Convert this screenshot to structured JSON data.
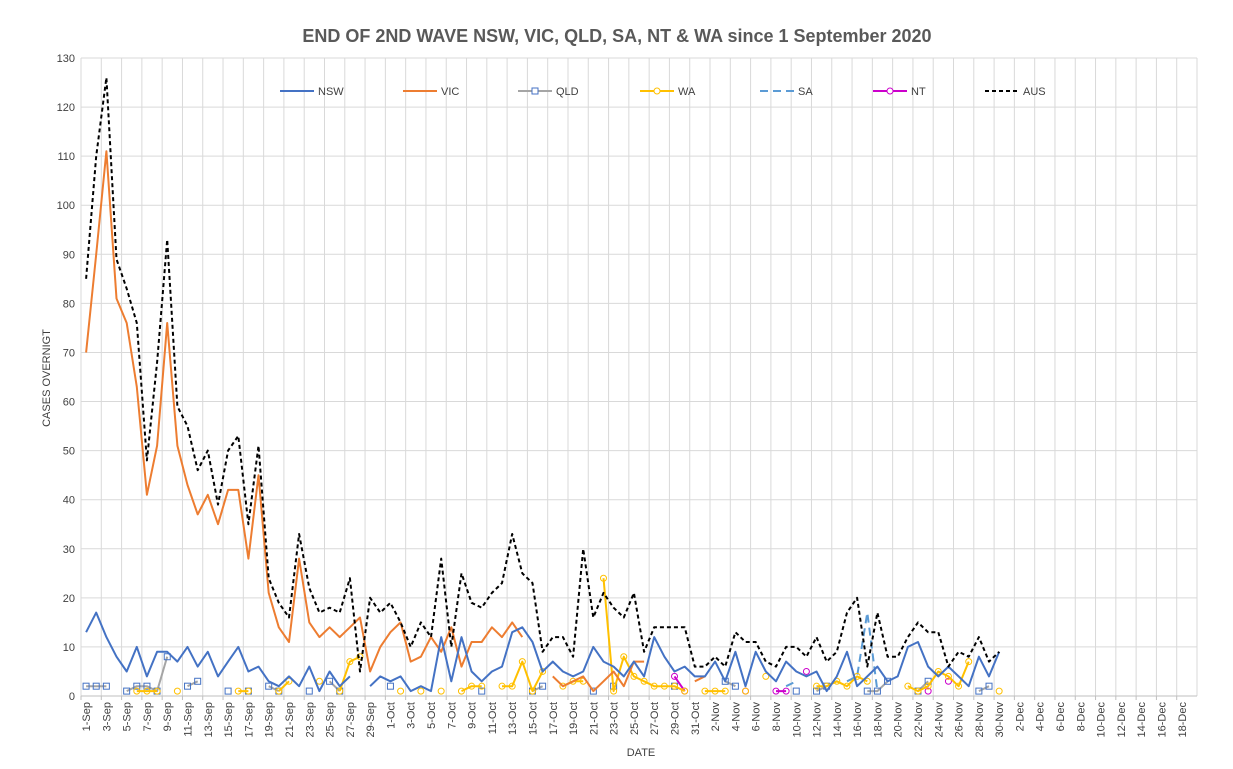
{
  "chart_data": {
    "type": "line",
    "title": "END OF 2ND WAVE NSW, VIC, QLD, SA, NT & WA since 1 September 2020",
    "xlabel": "DATE",
    "ylabel": "CASES OVERNIGT",
    "ylim": [
      0,
      130
    ],
    "y_ticks": [
      0,
      10,
      20,
      30,
      40,
      50,
      60,
      70,
      80,
      90,
      100,
      110,
      120,
      130
    ],
    "grid": true,
    "legend_position": "top",
    "x_tick_labels": [
      "1-Sep",
      "3-Sep",
      "5-Sep",
      "7-Sep",
      "9-Sep",
      "11-Sep",
      "13-Sep",
      "15-Sep",
      "17-Sep",
      "19-Sep",
      "21-Sep",
      "23-Sep",
      "25-Sep",
      "27-Sep",
      "29-Sep",
      "1-Oct",
      "3-Oct",
      "5-Oct",
      "7-Oct",
      "9-Oct",
      "11-Oct",
      "13-Oct",
      "15-Oct",
      "17-Oct",
      "19-Oct",
      "21-Oct",
      "23-Oct",
      "25-Oct",
      "27-Oct",
      "29-Oct",
      "31-Oct",
      "2-Nov",
      "4-Nov",
      "6-Nov",
      "8-Nov",
      "10-Nov",
      "12-Nov",
      "14-Nov",
      "16-Nov",
      "18-Nov",
      "20-Nov",
      "22-Nov",
      "24-Nov",
      "26-Nov",
      "28-Nov",
      "30-Nov",
      "2-Dec",
      "4-Dec",
      "6-Dec",
      "8-Dec",
      "10-Dec",
      "12-Dec",
      "14-Dec",
      "16-Dec",
      "18-Dec"
    ],
    "series": [
      {
        "name": "NSW",
        "color": "#4472C4",
        "style": "solid",
        "marker": "none",
        "values": [
          13,
          17,
          12,
          8,
          5,
          10,
          4,
          9,
          9,
          7,
          10,
          6,
          9,
          4,
          7,
          10,
          5,
          6,
          3,
          2,
          4,
          2,
          6,
          1,
          5,
          2,
          4,
          null,
          2,
          4,
          3,
          4,
          1,
          2,
          1,
          12,
          3,
          12,
          5,
          3,
          5,
          6,
          13,
          14,
          11,
          5,
          7,
          5,
          4,
          5,
          10,
          7,
          6,
          4,
          7,
          4,
          12,
          8,
          5,
          6,
          4,
          4,
          7,
          3,
          9,
          2,
          9,
          5,
          3,
          7,
          5,
          4,
          5,
          1,
          4,
          9,
          2,
          4,
          6,
          3,
          4,
          10,
          11,
          6,
          4,
          6,
          4,
          2,
          8,
          4,
          9
        ]
      },
      {
        "name": "VIC",
        "color": "#ED7D31",
        "style": "solid",
        "marker": "none",
        "values": [
          70,
          90,
          111,
          81,
          76,
          63,
          41,
          51,
          76,
          51,
          43,
          37,
          41,
          35,
          42,
          42,
          28,
          45,
          21,
          14,
          11,
          28,
          15,
          12,
          14,
          12,
          14,
          16,
          5,
          10,
          13,
          15,
          7,
          8,
          12,
          9,
          14,
          6,
          11,
          11,
          14,
          12,
          15,
          12,
          null,
          null,
          4,
          2,
          3,
          4,
          1,
          3,
          5,
          2,
          7,
          7,
          null,
          null,
          null,
          null,
          3,
          4,
          null,
          null,
          null,
          null,
          null,
          null,
          null,
          null,
          null,
          null,
          null,
          null,
          null,
          null,
          null,
          null,
          null,
          null,
          null,
          null,
          null,
          null,
          null,
          null,
          null,
          null,
          null,
          null,
          null
        ]
      },
      {
        "name": "QLD",
        "color": "#A5A5A5",
        "style": "solid",
        "marker": "square",
        "marker_color": "#4472C4",
        "values": [
          2,
          2,
          2,
          null,
          1,
          2,
          2,
          1,
          8,
          null,
          2,
          3,
          null,
          null,
          1,
          null,
          1,
          null,
          2,
          1,
          null,
          null,
          1,
          null,
          3,
          1,
          null,
          null,
          null,
          null,
          2,
          null,
          null,
          null,
          null,
          null,
          null,
          null,
          null,
          1,
          null,
          null,
          null,
          null,
          1,
          2,
          null,
          null,
          null,
          null,
          1,
          null,
          2,
          null,
          null,
          null,
          null,
          null,
          2,
          null,
          null,
          null,
          null,
          3,
          2,
          null,
          null,
          null,
          null,
          null,
          1,
          null,
          1,
          2,
          null,
          null,
          null,
          1,
          1,
          3,
          null,
          null,
          1,
          3,
          null,
          null,
          null,
          null,
          1,
          2,
          null
        ]
      },
      {
        "name": "WA",
        "color": "#FFC000",
        "style": "solid",
        "marker": "circle",
        "values": [
          null,
          null,
          null,
          null,
          null,
          1,
          1,
          1,
          null,
          1,
          null,
          null,
          null,
          null,
          null,
          1,
          1,
          null,
          null,
          1,
          3,
          null,
          null,
          3,
          null,
          1,
          7,
          8,
          null,
          null,
          null,
          1,
          null,
          1,
          null,
          1,
          null,
          1,
          2,
          2,
          null,
          2,
          2,
          7,
          1,
          5,
          null,
          2,
          3,
          3,
          null,
          24,
          1,
          8,
          4,
          3,
          2,
          2,
          2,
          1,
          null,
          1,
          1,
          1,
          null,
          1,
          null,
          4,
          null,
          null,
          null,
          null,
          2,
          2,
          3,
          2,
          4,
          3,
          null,
          null,
          null,
          2,
          1,
          2,
          5,
          4,
          2,
          7,
          null,
          null,
          1
        ]
      },
      {
        "name": "SA",
        "color": "#5B9BD5",
        "style": "dashed",
        "marker": "none",
        "values": [
          null,
          null,
          null,
          null,
          null,
          null,
          null,
          null,
          null,
          null,
          null,
          null,
          null,
          null,
          null,
          null,
          null,
          null,
          null,
          null,
          null,
          null,
          null,
          null,
          null,
          null,
          null,
          null,
          null,
          null,
          null,
          null,
          null,
          null,
          null,
          null,
          null,
          null,
          null,
          null,
          null,
          null,
          null,
          null,
          null,
          null,
          null,
          null,
          null,
          null,
          null,
          null,
          null,
          null,
          null,
          null,
          null,
          null,
          null,
          null,
          null,
          null,
          null,
          null,
          null,
          null,
          null,
          null,
          null,
          2,
          3,
          null,
          null,
          null,
          null,
          3,
          4,
          17,
          1,
          null,
          null,
          null,
          null,
          null,
          null,
          null,
          null,
          null,
          null,
          null,
          null
        ]
      },
      {
        "name": "NT",
        "color": "#CC00CC",
        "style": "solid",
        "marker": "circle",
        "values": [
          null,
          null,
          null,
          null,
          null,
          null,
          null,
          null,
          null,
          null,
          null,
          null,
          null,
          null,
          null,
          null,
          null,
          null,
          null,
          null,
          null,
          null,
          null,
          null,
          null,
          null,
          null,
          null,
          null,
          null,
          null,
          null,
          null,
          null,
          null,
          null,
          null,
          null,
          null,
          null,
          null,
          null,
          null,
          null,
          null,
          null,
          null,
          null,
          null,
          null,
          null,
          null,
          null,
          null,
          null,
          null,
          null,
          null,
          4,
          1,
          null,
          null,
          null,
          null,
          null,
          1,
          null,
          null,
          1,
          1,
          null,
          5,
          null,
          null,
          null,
          null,
          null,
          null,
          null,
          null,
          null,
          null,
          null,
          1,
          null,
          3,
          null,
          null,
          null,
          null,
          null
        ]
      },
      {
        "name": "AUS",
        "color": "#000000",
        "style": "dashed",
        "marker": "none",
        "values": [
          85,
          110,
          126,
          89,
          83,
          76,
          48,
          68,
          93,
          59,
          55,
          46,
          50,
          39,
          50,
          53,
          35,
          51,
          24,
          19,
          16,
          33,
          22,
          17,
          18,
          17,
          24,
          5,
          20,
          17,
          19,
          15,
          10,
          15,
          12,
          28,
          10,
          25,
          19,
          18,
          21,
          23,
          33,
          25,
          23,
          9,
          12,
          12,
          8,
          30,
          16,
          21,
          18,
          16,
          21,
          9,
          14,
          14,
          14,
          14,
          6,
          6,
          8,
          6,
          13,
          11,
          11,
          7,
          6,
          10,
          10,
          8,
          12,
          7,
          9,
          17,
          20,
          6,
          17,
          8,
          8,
          12,
          15,
          13,
          13,
          6,
          9,
          8,
          12,
          7,
          9
        ]
      }
    ]
  }
}
